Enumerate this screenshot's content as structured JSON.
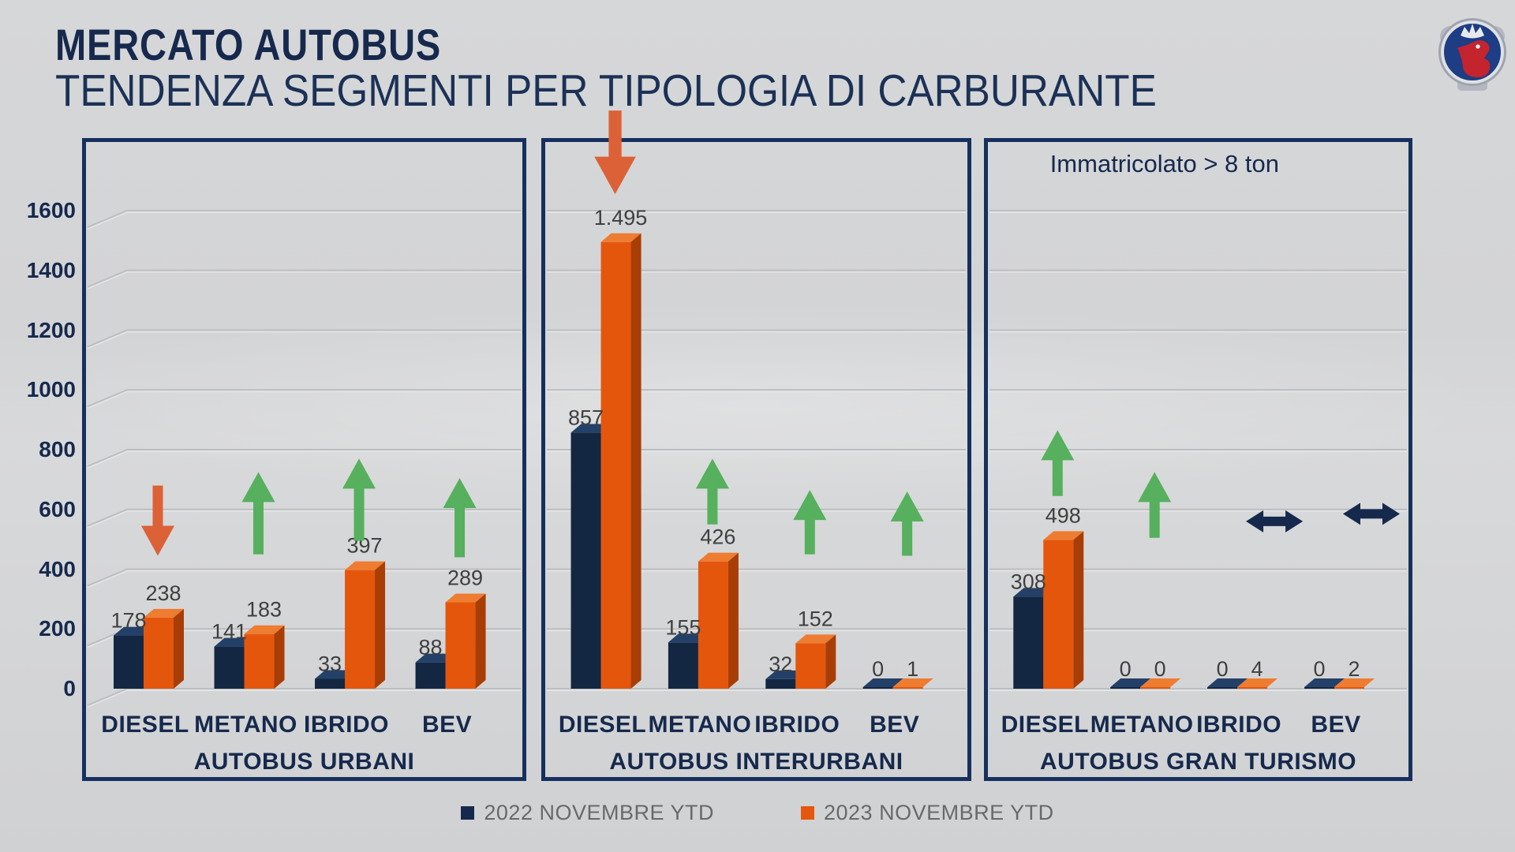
{
  "page": {
    "title": "MERCATO AUTOBUS",
    "subtitle": "TENDENZA SEGMENTI PER TIPOLOGIA DI CARBURANTE"
  },
  "legend": {
    "items": [
      {
        "label": "2022 NOVEMBRE YTD",
        "color": "#16294d"
      },
      {
        "label": "2023 NOVEMBRE YTD",
        "color": "#e5570e"
      }
    ]
  },
  "colors": {
    "navy_front": "#132742",
    "navy_top": "#234168",
    "navy_side": "#0b1a30",
    "orange_front": "#e5560d",
    "orange_top": "#ee7c31",
    "orange_side": "#a83e06",
    "arrow_up": "#56b05d",
    "arrow_down": "#dc6137",
    "arrow_flat": "#16294d",
    "grid": "#bcbdbf",
    "grid_emboss": "#e6e7e8",
    "panel_border": "#16305e",
    "navy_text": "#16294d",
    "value_label": "#3f3f3f",
    "legend_text": "#68696b"
  },
  "chart_data": {
    "type": "bar",
    "style": "3d-clustered-column",
    "title": "MERCATO AUTOBUS",
    "subtitle": "TENDENZA SEGMENTI PER TIPOLOGIA DI CARBURANTE",
    "annotation": "Immatricolato > 8 ton",
    "ylim": [
      0,
      1600
    ],
    "yticks": [
      "0",
      "200",
      "400",
      "600",
      "800",
      "1000",
      "1200",
      "1400",
      "1600"
    ],
    "grid": true,
    "legend_position": "bottom",
    "categories": [
      "DIESEL",
      "METANO",
      "IBRIDO",
      "BEV"
    ],
    "series_names": [
      "2022 NOVEMBRE YTD",
      "2023 NOVEMBRE YTD"
    ],
    "panels": [
      {
        "label": "AUTOBUS URBANI",
        "series": [
          {
            "name": "2022 NOVEMBRE YTD",
            "values": [
              178,
              141,
              33,
              88
            ],
            "labels": [
              "178",
              "141",
              "33",
              "88"
            ]
          },
          {
            "name": "2023 NOVEMBRE YTD",
            "values": [
              238,
              183,
              397,
              289
            ],
            "labels": [
              "238",
              "183",
              "397",
              "289"
            ]
          }
        ],
        "trend_arrows": [
          {
            "category": "DIESEL",
            "direction": "down",
            "from": 680,
            "to": 445
          },
          {
            "category": "METANO",
            "direction": "up",
            "from": 450,
            "to": 725
          },
          {
            "category": "IBRIDO",
            "direction": "up",
            "from": 495,
            "to": 770
          },
          {
            "category": "BEV",
            "direction": "up",
            "from": 440,
            "to": 705
          }
        ]
      },
      {
        "label": "AUTOBUS INTERURBANI",
        "series": [
          {
            "name": "2022 NOVEMBRE YTD",
            "values": [
              857,
              155,
              32,
              0
            ],
            "labels": [
              "857",
              "155",
              "32",
              "0"
            ]
          },
          {
            "name": "2023 NOVEMBRE YTD",
            "values": [
              1495,
              426,
              152,
              1
            ],
            "labels": [
              "1.495",
              "426",
              "152",
              "1"
            ]
          }
        ],
        "trend_arrows": [
          {
            "category": "DIESEL",
            "direction": "down",
            "from": 1935,
            "to": 1655,
            "size": 1.25
          },
          {
            "category": "METANO",
            "direction": "up",
            "from": 550,
            "to": 770
          },
          {
            "category": "IBRIDO",
            "direction": "up",
            "from": 450,
            "to": 665
          },
          {
            "category": "BEV",
            "direction": "up",
            "from": 445,
            "to": 660
          }
        ]
      },
      {
        "label": "AUTOBUS GRAN TURISMO",
        "series": [
          {
            "name": "2022 NOVEMBRE YTD",
            "values": [
              308,
              0,
              0,
              0
            ],
            "labels": [
              "308",
              "0",
              "0",
              "0"
            ]
          },
          {
            "name": "2023 NOVEMBRE YTD",
            "values": [
              498,
              0,
              4,
              2
            ],
            "labels": [
              "498",
              "0",
              "4",
              "2"
            ]
          }
        ],
        "trend_arrows": [
          {
            "category": "DIESEL",
            "direction": "up",
            "from": 645,
            "to": 865
          },
          {
            "category": "METANO",
            "direction": "up",
            "from": 505,
            "to": 725
          },
          {
            "category": "IBRIDO",
            "direction": "flat",
            "y": 560
          },
          {
            "category": "BEV",
            "direction": "flat",
            "y": 585
          }
        ]
      }
    ]
  }
}
